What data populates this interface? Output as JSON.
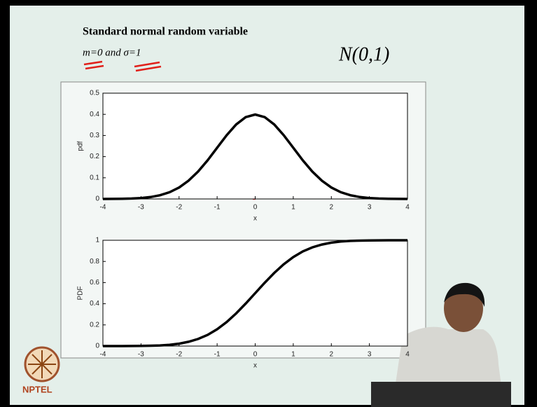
{
  "slide": {
    "title": "Standard normal random variable",
    "params": "m=0 and σ=1",
    "notation": "N(0,1)",
    "logo": "NPTEL"
  },
  "chart_data": [
    {
      "type": "line",
      "x": [
        -4,
        -3.75,
        -3.5,
        -3.25,
        -3,
        -2.75,
        -2.5,
        -2.25,
        -2,
        -1.75,
        -1.5,
        -1.25,
        -1,
        -0.75,
        -0.5,
        -0.25,
        0,
        0.25,
        0.5,
        0.75,
        1,
        1.25,
        1.5,
        1.75,
        2,
        2.25,
        2.5,
        2.75,
        3,
        3.25,
        3.5,
        3.75,
        4
      ],
      "values": [
        0.0001,
        0.0004,
        0.0009,
        0.002,
        0.0044,
        0.0091,
        0.0175,
        0.0317,
        0.054,
        0.0863,
        0.1295,
        0.1826,
        0.242,
        0.3011,
        0.3521,
        0.3867,
        0.3989,
        0.3867,
        0.3521,
        0.3011,
        0.242,
        0.1826,
        0.1295,
        0.0863,
        0.054,
        0.0317,
        0.0175,
        0.0091,
        0.0044,
        0.002,
        0.0009,
        0.0004,
        0.0001
      ],
      "color": "#000000",
      "xlabel": "x",
      "ylabel": "pdf",
      "xlim": [
        -4,
        4
      ],
      "xticks": [
        -4,
        -3,
        -2,
        -1,
        0,
        1,
        2,
        3,
        4
      ],
      "ylim": [
        0,
        0.5
      ],
      "yticks": [
        0,
        0.1,
        0.2,
        0.3,
        0.4,
        0.5
      ]
    },
    {
      "type": "line",
      "x": [
        -4,
        -3.75,
        -3.5,
        -3.25,
        -3,
        -2.75,
        -2.5,
        -2.25,
        -2,
        -1.75,
        -1.5,
        -1.25,
        -1,
        -0.75,
        -0.5,
        -0.25,
        0,
        0.25,
        0.5,
        0.75,
        1,
        1.25,
        1.5,
        1.75,
        2,
        2.25,
        2.5,
        2.75,
        3,
        3.25,
        3.5,
        3.75,
        4
      ],
      "values": [
        0,
        0.0001,
        0.0002,
        0.0006,
        0.0013,
        0.003,
        0.0062,
        0.0122,
        0.0228,
        0.0401,
        0.0668,
        0.1056,
        0.1587,
        0.2266,
        0.3085,
        0.4013,
        0.5,
        0.5987,
        0.6915,
        0.7734,
        0.8413,
        0.8944,
        0.9332,
        0.9599,
        0.9772,
        0.9878,
        0.9938,
        0.997,
        0.9987,
        0.9994,
        0.9998,
        0.9999,
        1
      ],
      "color": "#000000",
      "xlabel": "x",
      "ylabel": "PDF",
      "xlim": [
        -4,
        4
      ],
      "xticks": [
        -4,
        -3,
        -2,
        -1,
        0,
        1,
        2,
        3,
        4
      ],
      "ylim": [
        0,
        1
      ],
      "yticks": [
        0,
        0.2,
        0.4,
        0.6,
        0.8,
        1
      ]
    }
  ]
}
